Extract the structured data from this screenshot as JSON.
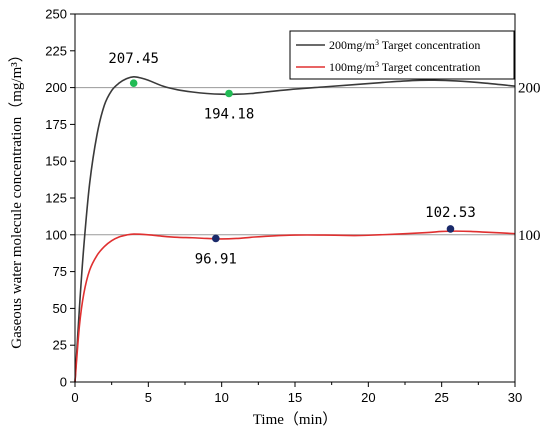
{
  "chart_data": {
    "type": "line",
    "xlabel": "Time（min）",
    "ylabel": "Gaseous water molecule concentration（mg/m³）",
    "xlim": [
      0,
      30
    ],
    "ylim": [
      0,
      250
    ],
    "x_ticks": [
      0,
      5,
      10,
      15,
      20,
      25,
      30
    ],
    "y_ticks": [
      0,
      25,
      50,
      75,
      100,
      125,
      150,
      175,
      200,
      225,
      250
    ],
    "reference_lines": [
      {
        "value": 200,
        "label": "200"
      },
      {
        "value": 100,
        "label": "100"
      }
    ],
    "legend": {
      "placement": "top-right",
      "entries": [
        {
          "label_main": "200mg/m",
          "label_sup": "3",
          "label_rest": " Target concentration",
          "color": "#3a3a3a"
        },
        {
          "label_main": "100mg/m",
          "label_sup": "3",
          "label_rest": " Target concentration",
          "color": "#e03030"
        }
      ]
    },
    "series": [
      {
        "color": "#3a3a3a",
        "x": [
          0,
          0.3,
          0.6,
          1.0,
          1.5,
          2.0,
          2.5,
          3.0,
          3.5,
          4.0,
          4.5,
          5.0,
          6.0,
          7.0,
          8.0,
          9.0,
          10.0,
          11.0,
          12.0,
          13.0,
          15.0,
          17.0,
          19.0,
          21.0,
          23.0,
          24.5,
          26.0,
          28.0,
          30.0
        ],
        "y": [
          0,
          50,
          92,
          135,
          168,
          188,
          198,
          203,
          206,
          207.3,
          206.5,
          205,
          201,
          198.5,
          197,
          196,
          195.5,
          195.5,
          196,
          197,
          199,
          200.5,
          202,
          203.5,
          204.8,
          205,
          204.5,
          203,
          201
        ]
      },
      {
        "color": "#e03030",
        "x": [
          0,
          0.3,
          0.6,
          1.0,
          1.5,
          2.0,
          2.5,
          3.0,
          3.5,
          4.0,
          5.0,
          6.0,
          7.0,
          8.0,
          9.0,
          10.0,
          11.0,
          12.0,
          13.0,
          15.0,
          17.0,
          19.0,
          20.0,
          22.0,
          24.0,
          25.0,
          26.0,
          27.0,
          28.0,
          30.0
        ],
        "y": [
          0,
          38,
          60,
          76,
          86,
          92,
          96,
          98.5,
          99.8,
          100.5,
          100,
          99,
          98.3,
          98,
          97.5,
          97.2,
          97.5,
          98.3,
          99,
          99.8,
          99.8,
          99.5,
          99.7,
          100.5,
          101.5,
          102.3,
          102.5,
          102.3,
          101.8,
          100.8
        ]
      }
    ],
    "markers": [
      {
        "x": 4.0,
        "y": 203,
        "label": "207.45",
        "color": "#22bb55",
        "label_dx": 0,
        "label_dy": -20
      },
      {
        "x": 10.5,
        "y": 196,
        "label": "194.18",
        "color": "#22bb55",
        "label_dx": 0,
        "label_dy": 25
      },
      {
        "x": 9.6,
        "y": 97.5,
        "label": "96.91",
        "color": "#1a2a6a",
        "label_dx": 0,
        "label_dy": 25
      },
      {
        "x": 25.6,
        "y": 104,
        "label": "102.53",
        "color": "#1a2a6a",
        "label_dx": 0,
        "label_dy": -12
      }
    ]
  }
}
